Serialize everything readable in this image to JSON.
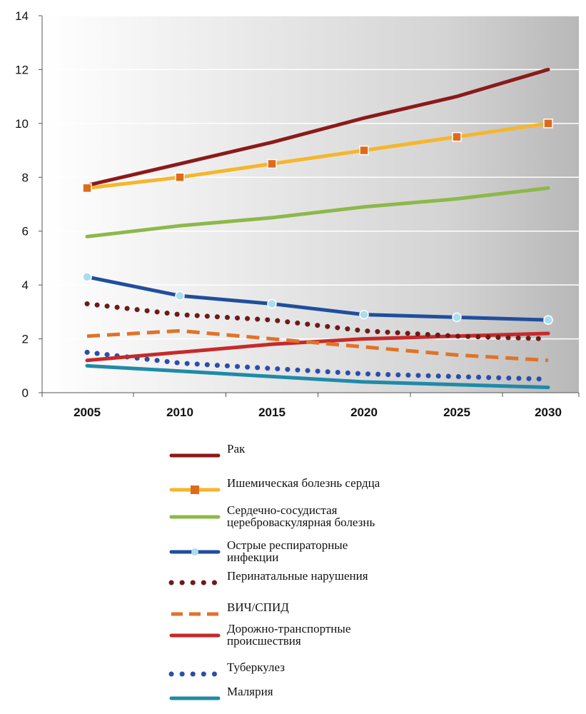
{
  "chart_data": {
    "type": "line",
    "title": "",
    "xlabel": "",
    "ylabel": "",
    "x": [
      2005,
      2010,
      2015,
      2020,
      2025,
      2030
    ],
    "ylim": [
      0,
      14
    ],
    "yticks": [
      0,
      2,
      4,
      6,
      8,
      10,
      12,
      14
    ],
    "grid": true,
    "legend_position": "bottom",
    "series": [
      {
        "name": "Рак",
        "values": [
          7.7,
          8.5,
          9.3,
          10.2,
          11.0,
          12.0
        ],
        "color": "#8B1A1A",
        "style": "solid",
        "marker": "none"
      },
      {
        "name": "Ишемическая болезнь сердца",
        "values": [
          7.6,
          8.0,
          8.5,
          9.0,
          9.5,
          10.0
        ],
        "color": "#F5B62B",
        "style": "solid",
        "marker": "square",
        "marker_color": "#E06A1C"
      },
      {
        "name": "Сердечно-сосудистая\nцереброваскулярная болезнь",
        "values": [
          5.8,
          6.2,
          6.5,
          6.9,
          7.2,
          7.6
        ],
        "color": "#8DB84A",
        "style": "solid",
        "marker": "none"
      },
      {
        "name": "Острые респираторные\nинфекции",
        "values": [
          4.3,
          3.6,
          3.3,
          2.9,
          2.8,
          2.7
        ],
        "color": "#1F4E9C",
        "style": "solid",
        "marker": "circle",
        "marker_color": "#A9DDF0"
      },
      {
        "name": "Перинатальные нарушения",
        "values": [
          3.3,
          2.9,
          2.7,
          2.3,
          2.1,
          2.0
        ],
        "color": "#6E1A1A",
        "style": "dotted",
        "marker": "none"
      },
      {
        "name": "ВИЧ/СПИД",
        "values": [
          2.1,
          2.3,
          2.0,
          1.7,
          1.4,
          1.2
        ],
        "color": "#E07328",
        "style": "dashed",
        "marker": "none"
      },
      {
        "name": "Дорожно-транспортные\nпроисшествия",
        "values": [
          1.2,
          1.5,
          1.8,
          2.0,
          2.1,
          2.2
        ],
        "color": "#C62A2A",
        "style": "solid",
        "marker": "none"
      },
      {
        "name": "Туберкулез",
        "values": [
          1.5,
          1.1,
          0.9,
          0.7,
          0.6,
          0.5
        ],
        "color": "#2B4FA8",
        "style": "dotted",
        "marker": "none"
      },
      {
        "name": "Малярия",
        "values": [
          1.0,
          0.8,
          0.6,
          0.4,
          0.3,
          0.2
        ],
        "color": "#1F8AA8",
        "style": "solid",
        "marker": "none"
      }
    ]
  }
}
